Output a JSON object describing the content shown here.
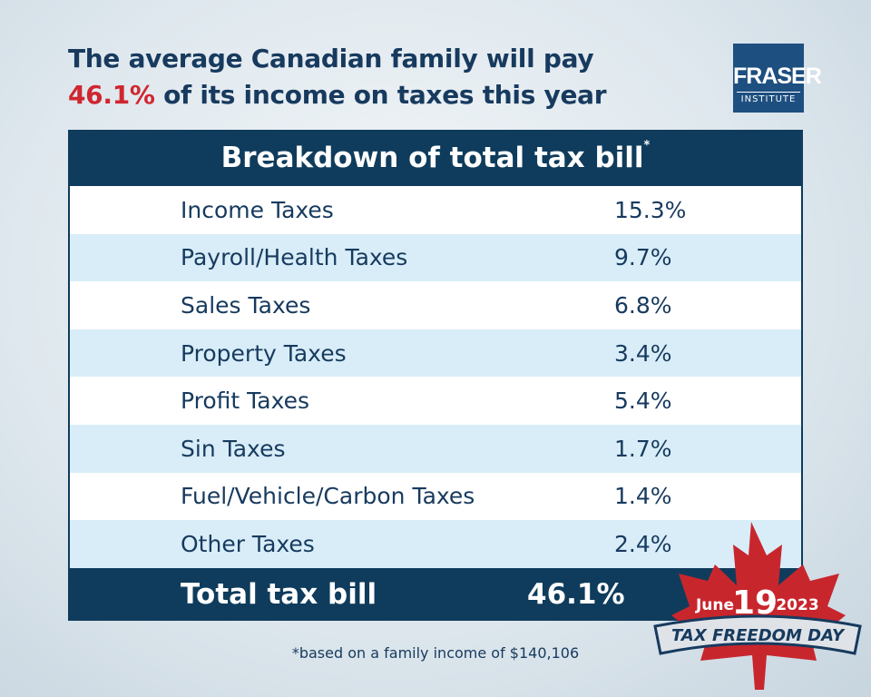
{
  "headline": {
    "line1": "The average Canadian family will pay",
    "highlight": "46.1%",
    "line2": "of its income on taxes this year"
  },
  "logo": {
    "name": "FRASER",
    "sub": "INSTITUTE"
  },
  "table": {
    "title": "Breakdown of total tax bill",
    "title_mark": "*",
    "rows": [
      [
        "Income Taxes",
        "15.3%"
      ],
      [
        "Payroll/Health Taxes",
        "9.7%"
      ],
      [
        "Sales Taxes",
        "6.8%"
      ],
      [
        "Property Taxes",
        "3.4%"
      ],
      [
        "Profit Taxes",
        "5.4%"
      ],
      [
        "Sin Taxes",
        "1.7%"
      ],
      [
        "Fuel/Vehicle/Carbon Taxes",
        "1.4%"
      ],
      [
        "Other Taxes",
        "2.4%"
      ]
    ],
    "total": [
      "Total tax bill",
      "46.1%"
    ]
  },
  "badge": {
    "month": "June",
    "day": "19",
    "year": "2023",
    "label": "TAX FREEDOM DAY"
  },
  "footnote": "*based on a family income of $140,106"
}
